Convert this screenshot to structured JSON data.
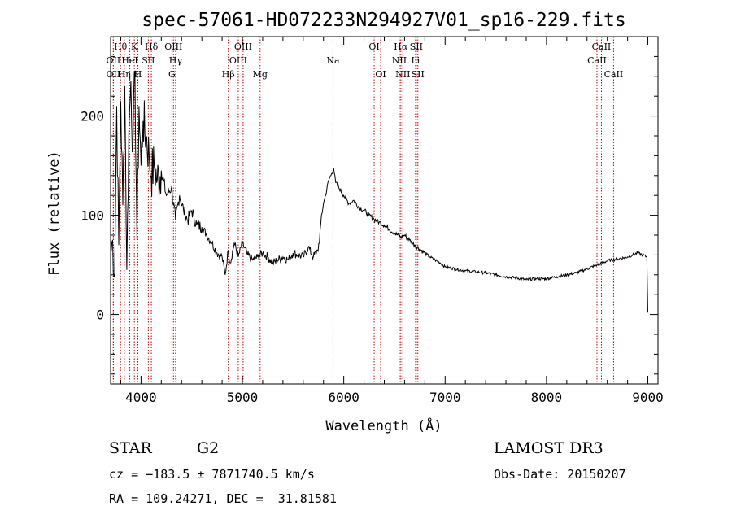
{
  "chart_data": {
    "type": "line",
    "title": "spec-57061-HD072233N294927V01_sp16-229.fits",
    "xlabel": "Wavelength (Å)",
    "ylabel": "Flux (relative)",
    "xlim": [
      3700,
      9100
    ],
    "ylim": [
      -70,
      280
    ],
    "x_ticks": [
      4000,
      5000,
      6000,
      7000,
      8000,
      9000
    ],
    "y_ticks": [
      0,
      100,
      200
    ],
    "grid": false,
    "series": [
      {
        "x": [
          3700,
          3720,
          3740,
          3760,
          3780,
          3800,
          3820,
          3840,
          3860,
          3880,
          3900,
          3920,
          3940,
          3960,
          3980,
          4000,
          4020,
          4050,
          4080,
          4100,
          4130,
          4160,
          4200,
          4250,
          4300,
          4340,
          4380,
          4420,
          4460,
          4500,
          4550,
          4600,
          4650,
          4700,
          4750,
          4800,
          4830,
          4861,
          4880,
          4920,
          4960,
          5000,
          5050,
          5100,
          5150,
          5200,
          5250,
          5300,
          5350,
          5400,
          5450,
          5500,
          5550,
          5600,
          5650,
          5700,
          5740,
          5760,
          5780,
          5800,
          5820,
          5850,
          5880,
          5900,
          5920,
          5950,
          6000,
          6050,
          6100,
          6150,
          6200,
          6250,
          6300,
          6350,
          6400,
          6450,
          6500,
          6563,
          6600,
          6650,
          6700,
          6750,
          6800,
          6850,
          6900,
          6950,
          7000,
          7100,
          7200,
          7300,
          7400,
          7500,
          7600,
          7700,
          7800,
          7900,
          8000,
          8100,
          8200,
          8300,
          8400,
          8500,
          8600,
          8700,
          8800,
          8850,
          8900,
          8950,
          8990,
          9000
        ],
        "y": [
          60,
          75,
          40,
          210,
          70,
          215,
          110,
          230,
          45,
          185,
          235,
          165,
          245,
          75,
          210,
          150,
          195,
          180,
          160,
          140,
          150,
          135,
          145,
          120,
          128,
          95,
          120,
          105,
          95,
          105,
          90,
          88,
          80,
          72,
          62,
          58,
          40,
          65,
          52,
          72,
          58,
          72,
          60,
          55,
          58,
          62,
          58,
          52,
          55,
          58,
          55,
          62,
          60,
          58,
          68,
          58,
          65,
          72,
          100,
          112,
          120,
          135,
          142,
          148,
          133,
          128,
          120,
          112,
          115,
          108,
          105,
          100,
          96,
          93,
          90,
          86,
          82,
          78,
          80,
          75,
          70,
          66,
          62,
          58,
          55,
          52,
          48,
          46,
          44,
          43,
          42,
          40,
          38,
          37,
          35,
          36,
          36,
          38,
          40,
          42,
          46,
          50,
          54,
          56,
          58,
          60,
          62,
          60,
          58,
          2
        ]
      }
    ],
    "line_markers": [
      {
        "label": "OII",
        "x": 3727,
        "row": 2
      },
      {
        "label": "OII",
        "x": 3727,
        "row": 3
      },
      {
        "label": "Hθ",
        "x": 3798,
        "row": 1
      },
      {
        "label": "Hη",
        "x": 3835,
        "row": 3
      },
      {
        "label": "HeI",
        "x": 3889,
        "row": 2
      },
      {
        "label": "K",
        "x": 3934,
        "row": 1
      },
      {
        "label": "H",
        "x": 3969,
        "row": 3
      },
      {
        "label": "SII",
        "x": 4072,
        "row": 2
      },
      {
        "label": "Hδ",
        "x": 4102,
        "row": 1
      },
      {
        "label": "OIII",
        "x": 4320,
        "row": 1
      },
      {
        "label": "Hγ",
        "x": 4341,
        "row": 2
      },
      {
        "label": "G",
        "x": 4305,
        "row": 3
      },
      {
        "label": "Hβ",
        "x": 4861,
        "row": 3
      },
      {
        "label": "OIII",
        "x": 4959,
        "row": 2
      },
      {
        "label": "OIII",
        "x": 5007,
        "row": 1
      },
      {
        "label": "Mg",
        "x": 5175,
        "row": 3
      },
      {
        "label": "Na",
        "x": 5894,
        "row": 2
      },
      {
        "label": "OI",
        "x": 6300,
        "row": 1
      },
      {
        "label": "OI",
        "x": 6364,
        "row": 3
      },
      {
        "label": "NII",
        "x": 6548,
        "row": 2
      },
      {
        "label": "Hα",
        "x": 6563,
        "row": 1
      },
      {
        "label": "NII",
        "x": 6583,
        "row": 3
      },
      {
        "label": "SII",
        "x": 6716,
        "row": 1
      },
      {
        "label": "Li",
        "x": 6708,
        "row": 2
      },
      {
        "label": "SII",
        "x": 6731,
        "row": 3
      },
      {
        "label": "CaII",
        "x": 8498,
        "row": 2
      },
      {
        "label": "CaII",
        "x": 8542,
        "row": 1
      },
      {
        "label": "CaII",
        "x": 8662,
        "row": 3
      }
    ],
    "colors": {
      "spectrum": "#000000",
      "line_markers": "#c00000",
      "axes": "#000000"
    }
  },
  "info": {
    "object_class": "STAR",
    "subclass": "G2",
    "survey": "LAMOST DR3",
    "redshift_line": "cz = −183.5 ± 7871740.5 km/s",
    "obs_date": "Obs-Date: 20150207",
    "coords": "RA = 109.24271, DEC =  31.81581"
  }
}
